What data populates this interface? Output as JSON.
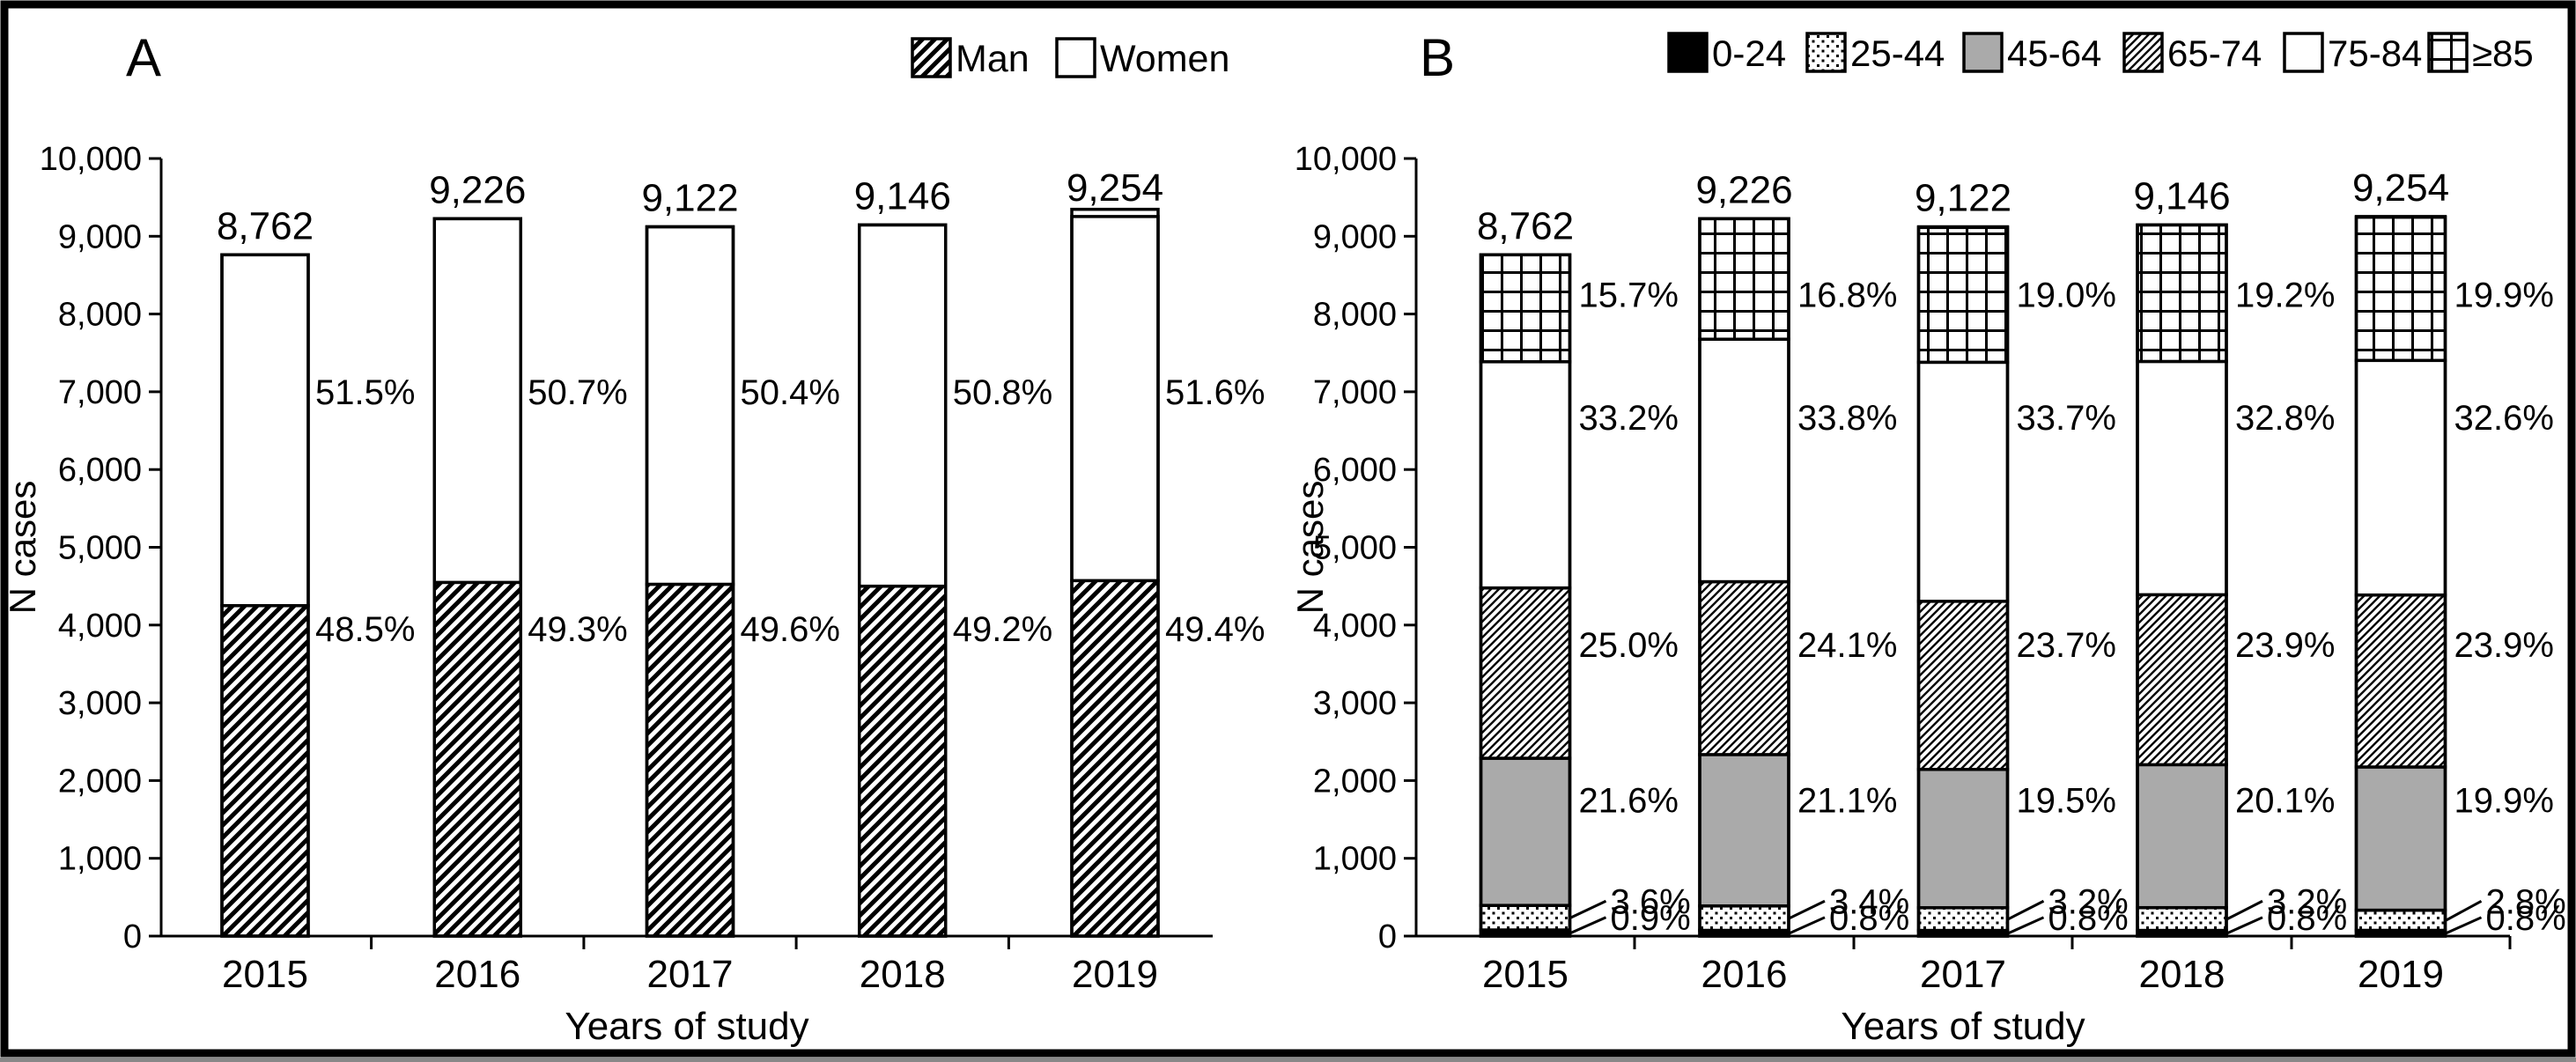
{
  "figure": {
    "background": "#ffffff",
    "border_color": "#000000",
    "ink_color": "#000000",
    "gray_fill": "#aaaaaa"
  },
  "chart_data": [
    {
      "type": "bar",
      "panel_label": "A",
      "stacked": true,
      "title": "",
      "xlabel": "Years of study",
      "ylabel": "N cases",
      "ylim": [
        0,
        10000
      ],
      "ytick_step": 1000,
      "grid": false,
      "legend_position": "top-right",
      "categories": [
        "2015",
        "2016",
        "2017",
        "2018",
        "2019"
      ],
      "totals": [
        8762,
        9226,
        9122,
        9146,
        9254
      ],
      "total_labels": [
        "8,762",
        "9,226",
        "9,122",
        "9,146",
        "9,254"
      ],
      "series": [
        {
          "name": "Man",
          "swatch": "diagonal-hatch",
          "pct": [
            48.5,
            49.3,
            49.6,
            49.2,
            49.4
          ]
        },
        {
          "name": "Women",
          "swatch": "white",
          "pct": [
            51.5,
            50.7,
            50.4,
            50.8,
            51.6
          ]
        }
      ]
    },
    {
      "type": "bar",
      "panel_label": "B",
      "stacked": true,
      "title": "",
      "xlabel": "Years of study",
      "ylabel": "N cases",
      "ylim": [
        0,
        10000
      ],
      "ytick_step": 1000,
      "grid": false,
      "legend_position": "top-right",
      "categories": [
        "2015",
        "2016",
        "2017",
        "2018",
        "2019"
      ],
      "totals": [
        8762,
        9226,
        9122,
        9146,
        9254
      ],
      "total_labels": [
        "8,762",
        "9,226",
        "9,122",
        "9,146",
        "9,254"
      ],
      "series": [
        {
          "name": "0-24",
          "swatch": "solid-black",
          "pct": [
            0.9,
            0.8,
            0.8,
            0.8,
            0.8
          ]
        },
        {
          "name": "25-44",
          "swatch": "dotted",
          "pct": [
            3.6,
            3.4,
            3.2,
            3.2,
            2.8
          ]
        },
        {
          "name": "45-64",
          "swatch": "solid-gray",
          "pct": [
            21.6,
            21.1,
            19.5,
            20.1,
            19.9
          ]
        },
        {
          "name": "65-74",
          "swatch": "diagonal-hatch-fine",
          "pct": [
            25.0,
            24.1,
            23.7,
            23.9,
            23.9
          ]
        },
        {
          "name": "75-84",
          "swatch": "white",
          "pct": [
            33.2,
            33.8,
            33.7,
            32.8,
            32.6
          ]
        },
        {
          "name": "≥85",
          "swatch": "grid",
          "pct": [
            15.7,
            16.8,
            19.0,
            19.2,
            19.9
          ]
        }
      ]
    }
  ]
}
